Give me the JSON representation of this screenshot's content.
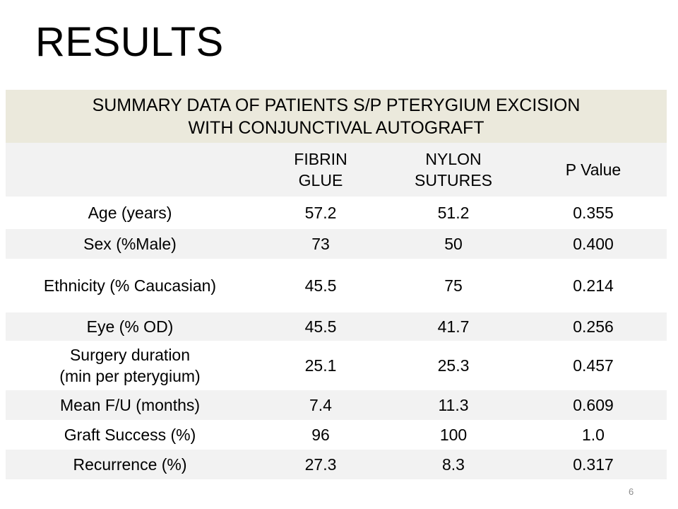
{
  "slide": {
    "title": "RESULTS",
    "page_number": "6"
  },
  "table": {
    "caption_lines": [
      "SUMMARY DATA OF PATIENTS S/P PTERYGIUM EXCISION",
      "WITH CONJUNCTIVAL AUTOGRAFT"
    ],
    "columns": [
      {
        "lines": [
          ""
        ]
      },
      {
        "lines": [
          "FIBRIN",
          "GLUE"
        ]
      },
      {
        "lines": [
          "NYLON",
          "SUTURES"
        ]
      },
      {
        "lines": [
          "P Value"
        ]
      }
    ],
    "rows": [
      {
        "label_lines": [
          "Age (years)"
        ],
        "fibrin_glue": "57.2",
        "nylon_sutures": "51.2",
        "p_value": "0.355"
      },
      {
        "label_lines": [
          "Sex (%Male)"
        ],
        "fibrin_glue": "73",
        "nylon_sutures": "50",
        "p_value": "0.400"
      },
      {
        "label_lines": [
          "Ethnicity (% Caucasian)"
        ],
        "fibrin_glue": "45.5",
        "nylon_sutures": "75",
        "p_value": "0.214"
      },
      {
        "label_lines": [
          "Eye (% OD)"
        ],
        "fibrin_glue": "45.5",
        "nylon_sutures": "41.7",
        "p_value": "0.256"
      },
      {
        "label_lines": [
          "Surgery duration",
          "(min per pterygium)"
        ],
        "fibrin_glue": "25.1",
        "nylon_sutures": "25.3",
        "p_value": "0.457"
      },
      {
        "label_lines": [
          "Mean F/U (months)"
        ],
        "fibrin_glue": "7.4",
        "nylon_sutures": "11.3",
        "p_value": "0.609"
      },
      {
        "label_lines": [
          "Graft Success (%)"
        ],
        "fibrin_glue": "96",
        "nylon_sutures": "100",
        "p_value": "1.0"
      },
      {
        "label_lines": [
          "Recurrence (%)"
        ],
        "fibrin_glue": "27.3",
        "nylon_sutures": "8.3",
        "p_value": "0.317"
      }
    ]
  }
}
